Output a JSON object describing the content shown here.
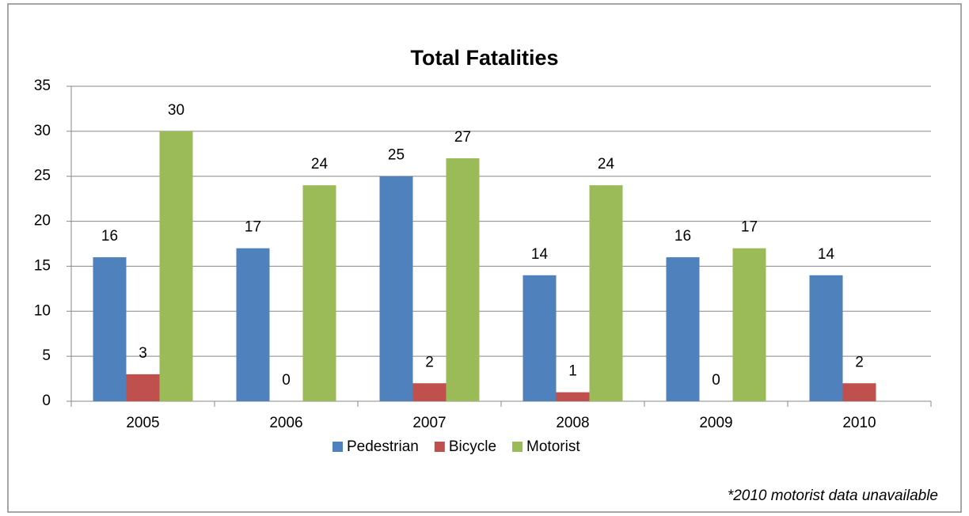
{
  "chart_data": {
    "type": "bar",
    "title": "Total Fatalities",
    "categories": [
      "2005",
      "2006",
      "2007",
      "2008",
      "2009",
      "2010"
    ],
    "series": [
      {
        "name": "Pedestrian",
        "color": "#4f81bd",
        "values": [
          16,
          17,
          25,
          14,
          16,
          14
        ]
      },
      {
        "name": "Bicycle",
        "color": "#c0504d",
        "values": [
          3,
          0,
          2,
          1,
          0,
          2
        ]
      },
      {
        "name": "Motorist",
        "color": "#9bbb59",
        "values": [
          30,
          24,
          27,
          24,
          17,
          null
        ]
      }
    ],
    "ylim": [
      0,
      35
    ],
    "yticks": [
      0,
      5,
      10,
      15,
      20,
      25,
      30,
      35
    ],
    "grid": true,
    "legend": "bottom",
    "annotation": "*2010  motorist data unavailable"
  }
}
